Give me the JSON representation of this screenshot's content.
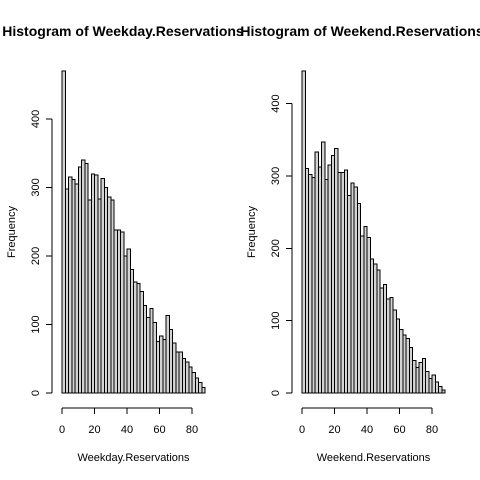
{
  "chart_data": [
    {
      "type": "bar",
      "title": "Histogram of Weekday.Reservations",
      "xlabel": "Weekday.Reservations",
      "ylabel": "Frequency",
      "xlim": [
        0,
        88
      ],
      "ylim": [
        0,
        470
      ],
      "bin_width": 2,
      "x_ticks": [
        0,
        20,
        40,
        60,
        80
      ],
      "y_ticks": [
        0,
        100,
        200,
        300,
        400
      ],
      "grid": false,
      "legend": "none",
      "colors": {
        "bar_fill": "#d3d3d3",
        "bar_stroke": "#000000"
      },
      "x": [
        1,
        3,
        5,
        7,
        9,
        11,
        13,
        15,
        17,
        19,
        21,
        23,
        25,
        27,
        29,
        31,
        33,
        35,
        37,
        39,
        41,
        43,
        45,
        47,
        49,
        51,
        53,
        55,
        57,
        59,
        61,
        63,
        65,
        67,
        69,
        71,
        73,
        75,
        77,
        79,
        81,
        83,
        85,
        87
      ],
      "values": [
        470,
        298,
        315,
        312,
        305,
        330,
        340,
        335,
        282,
        320,
        318,
        283,
        313,
        300,
        286,
        282,
        238,
        238,
        235,
        200,
        210,
        180,
        162,
        160,
        148,
        128,
        110,
        123,
        103,
        75,
        83,
        78,
        113,
        93,
        73,
        60,
        60,
        50,
        45,
        38,
        30,
        22,
        15,
        8
      ]
    },
    {
      "type": "bar",
      "title": "Histogram of Weekend.Reservations",
      "xlabel": "Weekend.Reservations",
      "ylabel": "Frequency",
      "xlim": [
        0,
        88
      ],
      "ylim": [
        0,
        445
      ],
      "bin_width": 2,
      "x_ticks": [
        0,
        20,
        40,
        60,
        80
      ],
      "y_ticks": [
        0,
        100,
        200,
        300,
        400
      ],
      "grid": false,
      "legend": "none",
      "colors": {
        "bar_fill": "#d3d3d3",
        "bar_stroke": "#000000"
      },
      "x": [
        1,
        3,
        5,
        7,
        9,
        11,
        13,
        15,
        17,
        19,
        21,
        23,
        25,
        27,
        29,
        31,
        33,
        35,
        37,
        39,
        41,
        43,
        45,
        47,
        49,
        51,
        53,
        55,
        57,
        59,
        61,
        63,
        65,
        67,
        69,
        71,
        73,
        75,
        77,
        79,
        81,
        83,
        85,
        87
      ],
      "values": [
        445,
        310,
        302,
        298,
        333,
        312,
        347,
        295,
        315,
        328,
        338,
        305,
        305,
        308,
        273,
        290,
        285,
        262,
        217,
        230,
        215,
        185,
        178,
        170,
        145,
        150,
        130,
        132,
        115,
        102,
        88,
        80,
        75,
        63,
        45,
        35,
        42,
        48,
        30,
        20,
        25,
        15,
        9,
        4
      ]
    }
  ]
}
